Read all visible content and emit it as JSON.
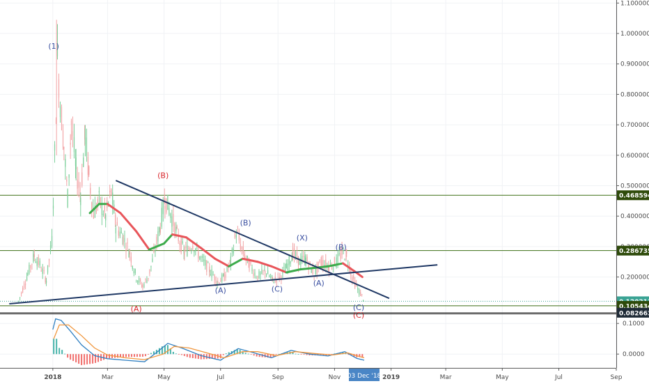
{
  "chart_data": {
    "type": "line",
    "symbol": "",
    "title": "",
    "x_axis": {
      "tick_labels": [
        "2018",
        "Mar",
        "May",
        "Jul",
        "Sep",
        "Nov",
        "2019",
        "Mar",
        "May",
        "Jul",
        "Sep"
      ],
      "tick_dates": [
        "2018-01-01",
        "2018-03-01",
        "2018-05-01",
        "2018-07-01",
        "2018-09-01",
        "2018-11-01",
        "2019-01-01",
        "2019-03-01",
        "2019-05-01",
        "2019-07-01",
        "2019-09-01"
      ],
      "range": [
        "2017-11-05",
        "2019-09-01"
      ],
      "cursor_label": "03 Dec '18",
      "cursor_date": "2018-12-03"
    },
    "price_axis": {
      "tick_labels": [
        "1.1000000",
        "1.0000000",
        "0.9000000",
        "0.8000000",
        "0.7000000",
        "0.6000000",
        "0.5000000",
        "0.4000000",
        "0.3000000",
        "0.2000000"
      ],
      "tick_values": [
        1.1,
        1.0,
        0.9,
        0.8,
        0.7,
        0.6,
        0.5,
        0.4,
        0.3,
        0.2
      ],
      "range": [
        0.08,
        1.11
      ],
      "scale": "linear"
    },
    "horizontal_levels": [
      {
        "value": 0.4685942,
        "label": "0.4685942",
        "color": "#2e4a0a",
        "line_color": "#3c6e14"
      },
      {
        "value": 0.2867354,
        "label": "0.2867354",
        "color": "#2e4a0a",
        "line_color": "#3c6e14"
      },
      {
        "value": 0.1202116,
        "label": "0.1202116",
        "color": "#3aa394",
        "line_color": "#3aa394",
        "dotted": true
      },
      {
        "value": 0.1054346,
        "label": "0.1054346",
        "color": "#2e4a0a",
        "line_color": "#3c6e14"
      },
      {
        "value": 0.0826637,
        "label": "0.0826637",
        "color": "#1e2a36",
        "line_color": "#2a2a2a"
      }
    ],
    "trendlines": [
      {
        "name": "upper",
        "from": {
          "date": "2018-03-10",
          "value": 0.517
        },
        "to": {
          "date": "2018-12-30",
          "value": 0.13
        },
        "color": "#1f3864"
      },
      {
        "name": "lower",
        "from": {
          "date": "2017-11-15",
          "value": 0.112
        },
        "to": {
          "date": "2019-02-20",
          "value": 0.24
        },
        "color": "#1f3864"
      }
    ],
    "price_series": [
      {
        "date": "2017-11-25",
        "value": 0.12
      },
      {
        "date": "2017-12-05",
        "value": 0.21
      },
      {
        "date": "2017-12-12",
        "value": 0.27
      },
      {
        "date": "2017-12-18",
        "value": 0.24
      },
      {
        "date": "2017-12-25",
        "value": 0.19
      },
      {
        "date": "2017-12-31",
        "value": 0.32
      },
      {
        "date": "2018-01-03",
        "value": 0.6
      },
      {
        "date": "2018-01-06",
        "value": 0.92
      },
      {
        "date": "2018-01-09",
        "value": 0.78
      },
      {
        "date": "2018-01-13",
        "value": 0.63
      },
      {
        "date": "2018-01-17",
        "value": 0.46
      },
      {
        "date": "2018-01-21",
        "value": 0.71
      },
      {
        "date": "2018-01-26",
        "value": 0.55
      },
      {
        "date": "2018-01-31",
        "value": 0.47
      },
      {
        "date": "2018-02-05",
        "value": 0.67
      },
      {
        "date": "2018-02-09",
        "value": 0.53
      },
      {
        "date": "2018-02-14",
        "value": 0.41
      },
      {
        "date": "2018-02-20",
        "value": 0.45
      },
      {
        "date": "2018-02-27",
        "value": 0.4
      },
      {
        "date": "2018-03-05",
        "value": 0.48
      },
      {
        "date": "2018-03-10",
        "value": 0.37
      },
      {
        "date": "2018-03-18",
        "value": 0.33
      },
      {
        "date": "2018-03-25",
        "value": 0.28
      },
      {
        "date": "2018-04-01",
        "value": 0.2
      },
      {
        "date": "2018-04-08",
        "value": 0.17
      },
      {
        "date": "2018-04-14",
        "value": 0.2
      },
      {
        "date": "2018-04-20",
        "value": 0.27
      },
      {
        "date": "2018-04-27",
        "value": 0.37
      },
      {
        "date": "2018-05-02",
        "value": 0.46
      },
      {
        "date": "2018-05-08",
        "value": 0.41
      },
      {
        "date": "2018-05-15",
        "value": 0.34
      },
      {
        "date": "2018-05-23",
        "value": 0.28
      },
      {
        "date": "2018-06-01",
        "value": 0.31
      },
      {
        "date": "2018-06-10",
        "value": 0.26
      },
      {
        "date": "2018-06-20",
        "value": 0.22
      },
      {
        "date": "2018-06-28",
        "value": 0.185
      },
      {
        "date": "2018-07-05",
        "value": 0.2
      },
      {
        "date": "2018-07-12",
        "value": 0.25
      },
      {
        "date": "2018-07-18",
        "value": 0.35
      },
      {
        "date": "2018-07-24",
        "value": 0.29
      },
      {
        "date": "2018-08-01",
        "value": 0.24
      },
      {
        "date": "2018-08-10",
        "value": 0.2
      },
      {
        "date": "2018-08-18",
        "value": 0.22
      },
      {
        "date": "2018-08-26",
        "value": 0.19
      },
      {
        "date": "2018-09-03",
        "value": 0.2
      },
      {
        "date": "2018-09-10",
        "value": 0.23
      },
      {
        "date": "2018-09-17",
        "value": 0.28
      },
      {
        "date": "2018-09-24",
        "value": 0.25
      },
      {
        "date": "2018-10-01",
        "value": 0.26
      },
      {
        "date": "2018-10-10",
        "value": 0.21
      },
      {
        "date": "2018-10-18",
        "value": 0.25
      },
      {
        "date": "2018-10-26",
        "value": 0.235
      },
      {
        "date": "2018-11-03",
        "value": 0.25
      },
      {
        "date": "2018-11-09",
        "value": 0.28
      },
      {
        "date": "2018-11-14",
        "value": 0.27
      },
      {
        "date": "2018-11-20",
        "value": 0.2
      },
      {
        "date": "2018-11-26",
        "value": 0.16
      },
      {
        "date": "2018-12-03",
        "value": 0.125
      }
    ],
    "moving_average": {
      "color_rising": "#3cab4b",
      "color_falling": "#e8555a",
      "points": [
        {
          "date": "2018-02-10",
          "value": 0.41
        },
        {
          "date": "2018-02-20",
          "value": 0.44
        },
        {
          "date": "2018-03-01",
          "value": 0.44
        },
        {
          "date": "2018-03-15",
          "value": 0.41
        },
        {
          "date": "2018-04-01",
          "value": 0.35
        },
        {
          "date": "2018-04-15",
          "value": 0.29
        },
        {
          "date": "2018-05-01",
          "value": 0.31
        },
        {
          "date": "2018-05-10",
          "value": 0.34
        },
        {
          "date": "2018-05-25",
          "value": 0.33
        },
        {
          "date": "2018-06-10",
          "value": 0.295
        },
        {
          "date": "2018-06-25",
          "value": 0.26
        },
        {
          "date": "2018-07-10",
          "value": 0.235
        },
        {
          "date": "2018-07-25",
          "value": 0.26
        },
        {
          "date": "2018-08-10",
          "value": 0.25
        },
        {
          "date": "2018-08-25",
          "value": 0.235
        },
        {
          "date": "2018-09-10",
          "value": 0.215
        },
        {
          "date": "2018-09-25",
          "value": 0.225
        },
        {
          "date": "2018-10-10",
          "value": 0.23
        },
        {
          "date": "2018-10-25",
          "value": 0.235
        },
        {
          "date": "2018-11-10",
          "value": 0.245
        },
        {
          "date": "2018-11-22",
          "value": 0.22
        },
        {
          "date": "2018-12-01",
          "value": 0.2
        }
      ]
    },
    "wave_labels": [
      {
        "text": "(1)",
        "date": "2018-01-02",
        "value": 0.95,
        "color": "#3a4fa0"
      },
      {
        "text": "(B)",
        "date": "2018-04-30",
        "value": 0.525,
        "color": "#d9262c"
      },
      {
        "text": "(A)",
        "date": "2018-04-01",
        "value": 0.087,
        "color": "#d9262c"
      },
      {
        "text": "(B)",
        "date": "2018-07-28",
        "value": 0.37,
        "color": "#3a4fa0"
      },
      {
        "text": "(A)",
        "date": "2018-07-01",
        "value": 0.148,
        "color": "#3a4fa0"
      },
      {
        "text": "(C)",
        "date": "2018-08-31",
        "value": 0.152,
        "color": "#3a4fa0"
      },
      {
        "text": "(X)",
        "date": "2018-09-27",
        "value": 0.32,
        "color": "#3a4fa0"
      },
      {
        "text": "(A)",
        "date": "2018-10-15",
        "value": 0.172,
        "color": "#3a4fa0"
      },
      {
        "text": "(B)",
        "date": "2018-11-08",
        "value": 0.29,
        "color": "#3a4fa0"
      },
      {
        "text": "(C)",
        "date": "2018-11-27",
        "value": 0.092,
        "color": "#3a4fa0"
      },
      {
        "text": "(C)",
        "date": "2018-11-27",
        "value": 0.066,
        "color": "#d9262c"
      }
    ],
    "macd": {
      "axis_tick_labels": [
        "0.1000",
        "0.0000"
      ],
      "axis_tick_values": [
        0.1,
        0.0
      ],
      "range": [
        -0.045,
        0.13
      ],
      "macd_line": {
        "color": "#2f7fc1",
        "points": [
          {
            "date": "2018-01-01",
            "value": 0.08
          },
          {
            "date": "2018-01-04",
            "value": 0.115
          },
          {
            "date": "2018-01-10",
            "value": 0.11
          },
          {
            "date": "2018-01-20",
            "value": 0.075
          },
          {
            "date": "2018-02-01",
            "value": 0.03
          },
          {
            "date": "2018-02-15",
            "value": -0.005
          },
          {
            "date": "2018-03-01",
            "value": -0.015
          },
          {
            "date": "2018-03-20",
            "value": -0.02
          },
          {
            "date": "2018-04-10",
            "value": -0.025
          },
          {
            "date": "2018-04-25",
            "value": 0.01
          },
          {
            "date": "2018-05-05",
            "value": 0.035
          },
          {
            "date": "2018-05-20",
            "value": 0.02
          },
          {
            "date": "2018-06-10",
            "value": -0.005
          },
          {
            "date": "2018-07-01",
            "value": -0.02
          },
          {
            "date": "2018-07-20",
            "value": 0.018
          },
          {
            "date": "2018-08-05",
            "value": 0.005
          },
          {
            "date": "2018-08-25",
            "value": -0.012
          },
          {
            "date": "2018-09-15",
            "value": 0.012
          },
          {
            "date": "2018-10-05",
            "value": 0.0
          },
          {
            "date": "2018-10-25",
            "value": -0.006
          },
          {
            "date": "2018-11-12",
            "value": 0.008
          },
          {
            "date": "2018-11-25",
            "value": -0.014
          },
          {
            "date": "2018-12-03",
            "value": -0.02
          }
        ]
      },
      "signal_line": {
        "color": "#f0963c",
        "points": [
          {
            "date": "2018-01-02",
            "value": 0.05
          },
          {
            "date": "2018-01-08",
            "value": 0.095
          },
          {
            "date": "2018-01-18",
            "value": 0.095
          },
          {
            "date": "2018-02-01",
            "value": 0.06
          },
          {
            "date": "2018-02-15",
            "value": 0.02
          },
          {
            "date": "2018-03-01",
            "value": -0.003
          },
          {
            "date": "2018-03-20",
            "value": -0.012
          },
          {
            "date": "2018-04-10",
            "value": -0.018
          },
          {
            "date": "2018-04-30",
            "value": 0.0
          },
          {
            "date": "2018-05-12",
            "value": 0.025
          },
          {
            "date": "2018-05-28",
            "value": 0.02
          },
          {
            "date": "2018-06-15",
            "value": 0.005
          },
          {
            "date": "2018-07-05",
            "value": -0.012
          },
          {
            "date": "2018-07-25",
            "value": 0.008
          },
          {
            "date": "2018-08-10",
            "value": 0.008
          },
          {
            "date": "2018-08-30",
            "value": -0.005
          },
          {
            "date": "2018-09-20",
            "value": 0.008
          },
          {
            "date": "2018-10-10",
            "value": 0.002
          },
          {
            "date": "2018-10-30",
            "value": -0.003
          },
          {
            "date": "2018-11-15",
            "value": 0.004
          },
          {
            "date": "2018-11-28",
            "value": -0.008
          },
          {
            "date": "2018-12-03",
            "value": -0.012
          }
        ]
      },
      "histogram_colors": {
        "positive": "#26a69a",
        "negative": "#ef5350"
      }
    }
  }
}
